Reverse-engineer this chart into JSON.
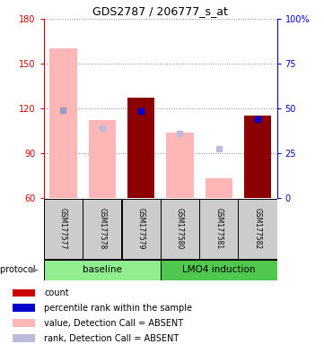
{
  "title": "GDS2787 / 206777_s_at",
  "samples": [
    "GSM177577",
    "GSM177578",
    "GSM177579",
    "GSM177580",
    "GSM177581",
    "GSM177582"
  ],
  "ylim_left": [
    60,
    180
  ],
  "ylim_right": [
    0,
    100
  ],
  "yticks_left": [
    60,
    90,
    120,
    150,
    180
  ],
  "yticks_right": [
    0,
    25,
    50,
    75,
    100
  ],
  "ytick_labels_right": [
    "0",
    "25",
    "50",
    "75",
    "100%"
  ],
  "value_bars": [
    {
      "x": 0,
      "value": 160,
      "color": "#FFB6B6"
    },
    {
      "x": 1,
      "value": 112,
      "color": "#FFB6B6"
    },
    {
      "x": 2,
      "value": 127,
      "color": "#8B0000"
    },
    {
      "x": 3,
      "value": 104,
      "color": "#FFB6B6"
    },
    {
      "x": 4,
      "value": 73,
      "color": "#FFB6B6"
    },
    {
      "x": 5,
      "value": 115,
      "color": "#8B0000"
    }
  ],
  "rank_markers": [
    {
      "x": 0,
      "rank": 119,
      "color": "#9999CC"
    },
    {
      "x": 1,
      "rank": 107,
      "color": "#BBBBDD"
    },
    {
      "x": 2,
      "rank": 118,
      "color": "#0000CC"
    },
    {
      "x": 3,
      "rank": 103,
      "color": "#BBBBDD"
    },
    {
      "x": 4,
      "rank": 93,
      "color": "#BBBBDD"
    },
    {
      "x": 5,
      "rank": 113,
      "color": "#0000CC"
    }
  ],
  "left_axis_color": "#CC0000",
  "right_axis_color": "#0000CC",
  "sample_box_color": "#CCCCCC",
  "protocol_groups": [
    {
      "xmin": -0.5,
      "xmax": 2.5,
      "label": "baseline",
      "color": "#90EE90"
    },
    {
      "xmin": 2.5,
      "xmax": 5.5,
      "label": "LMO4 induction",
      "color": "#50C850"
    }
  ],
  "legend_items": [
    {
      "color": "#CC0000",
      "label": "count"
    },
    {
      "color": "#0000CC",
      "label": "percentile rank within the sample"
    },
    {
      "color": "#FFB6B6",
      "label": "value, Detection Call = ABSENT"
    },
    {
      "color": "#BBBBDD",
      "label": "rank, Detection Call = ABSENT"
    }
  ]
}
